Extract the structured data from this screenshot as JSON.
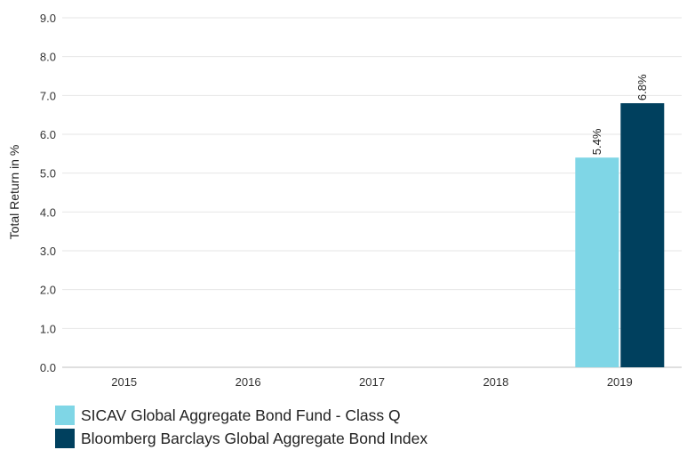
{
  "chart_data": {
    "type": "bar",
    "categories": [
      "2015",
      "2016",
      "2017",
      "2018",
      "2019"
    ],
    "series": [
      {
        "name": "SICAV Global Aggregate Bond Fund - Class Q",
        "values": [
          null,
          null,
          null,
          null,
          5.4
        ],
        "labels": [
          null,
          null,
          null,
          null,
          "5.4%"
        ],
        "color": "#7fd6e6"
      },
      {
        "name": "Bloomberg Barclays Global Aggregate Bond Index",
        "values": [
          null,
          null,
          null,
          null,
          6.8
        ],
        "labels": [
          null,
          null,
          null,
          null,
          "6.8%"
        ],
        "color": "#00405e"
      }
    ],
    "ylabel": "Total Return in %",
    "xlabel": "",
    "ylim": [
      0,
      9
    ],
    "yticks": [
      "0.0",
      "1.0",
      "2.0",
      "3.0",
      "4.0",
      "5.0",
      "6.0",
      "7.0",
      "8.0",
      "9.0"
    ],
    "grid": true,
    "legend": "bottom-left"
  }
}
